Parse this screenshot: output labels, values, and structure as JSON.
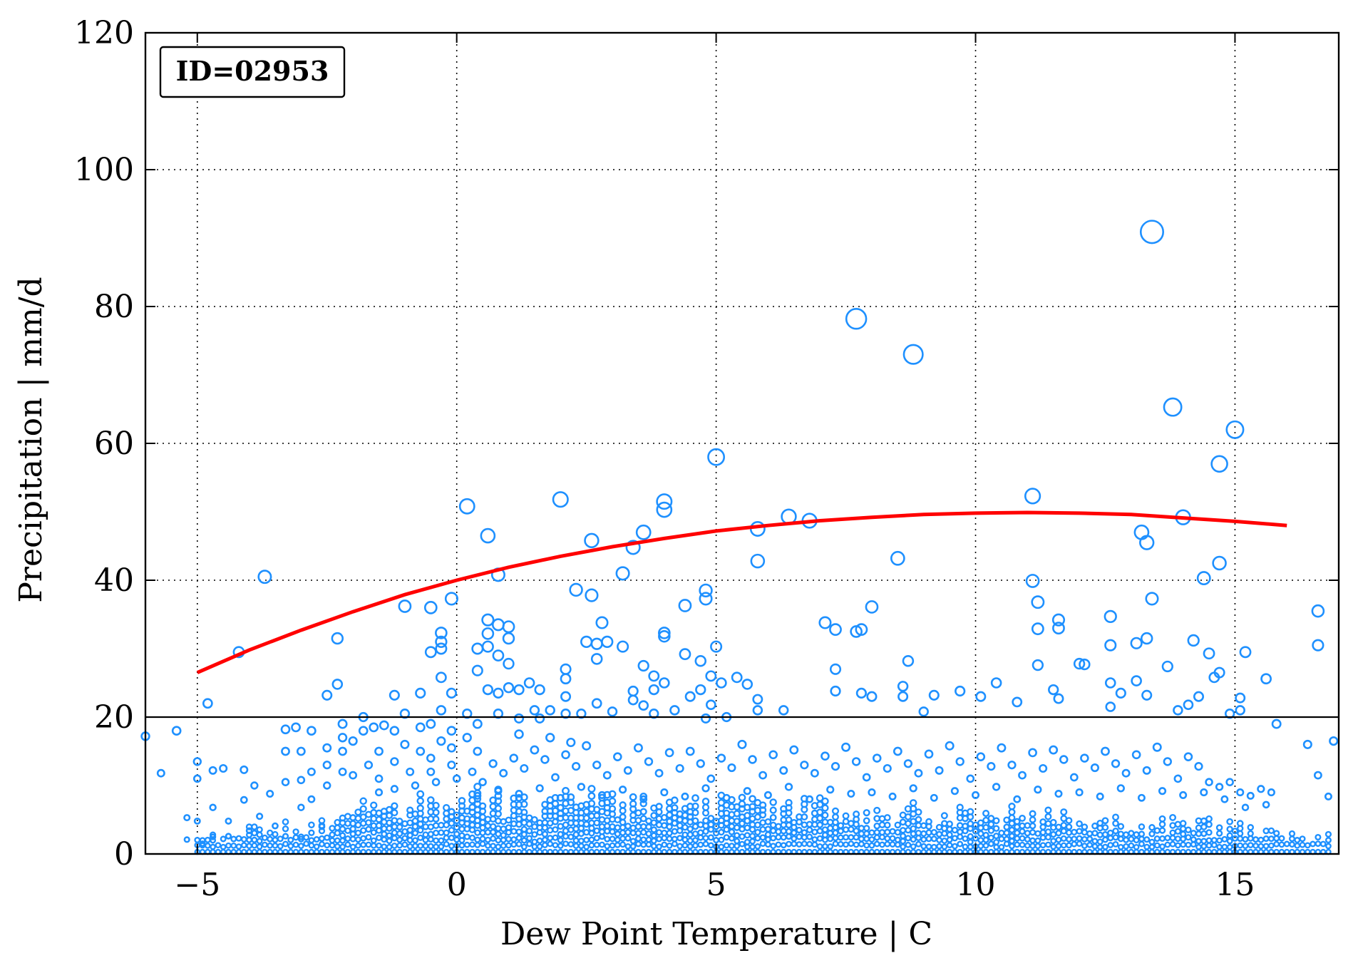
{
  "chart_data": {
    "type": "scatter",
    "title": "",
    "id_label": "ID=02953",
    "xlabel": "Dew Point Temperature | C",
    "ylabel": "Precipitation | mm/d",
    "xlim": [
      -6,
      17
    ],
    "ylim": [
      0,
      120
    ],
    "xticks": [
      -5,
      0,
      5,
      10,
      15
    ],
    "yticks": [
      0,
      20,
      40,
      60,
      80,
      100,
      120
    ],
    "xtick_labels": [
      "−5",
      "0",
      "5",
      "10",
      "15"
    ],
    "ytick_labels": [
      "0",
      "20",
      "40",
      "60",
      "80",
      "100",
      "120"
    ],
    "grid": true,
    "threshold_line": 20,
    "colors": {
      "points": "#1e90ff",
      "fit": "#ff0000",
      "threshold": "#000000"
    },
    "marker_size_encodes": "precipitation",
    "fit_curve": {
      "x": [
        -5,
        -4,
        -3,
        -2,
        -1,
        0,
        1,
        2,
        3,
        4,
        5,
        6,
        7,
        8,
        9,
        10,
        11,
        12,
        13,
        14,
        15,
        16
      ],
      "y": [
        26.5,
        29.8,
        32.7,
        35.4,
        37.9,
        40.0,
        41.9,
        43.5,
        44.9,
        46.1,
        47.2,
        48.0,
        48.7,
        49.2,
        49.6,
        49.8,
        49.9,
        49.8,
        49.6,
        49.1,
        48.6,
        48.0
      ]
    },
    "points": [
      [
        -6.0,
        17.2
      ],
      [
        -5.7,
        11.8
      ],
      [
        -5.4,
        18.0
      ],
      [
        -5.2,
        5.3
      ],
      [
        -5.2,
        2.1
      ],
      [
        -5.0,
        13.5
      ],
      [
        -5.0,
        11.0
      ],
      [
        -5.0,
        4.8
      ],
      [
        -4.9,
        1.5
      ],
      [
        -4.8,
        22.0
      ],
      [
        -4.7,
        12.2
      ],
      [
        -4.7,
        6.8
      ],
      [
        -4.7,
        2.5
      ],
      [
        -4.5,
        12.5
      ],
      [
        -4.4,
        4.8
      ],
      [
        -4.4,
        2.6
      ],
      [
        -4.2,
        29.5
      ],
      [
        -4.1,
        12.3
      ],
      [
        -4.1,
        7.9
      ],
      [
        -4.0,
        3.4
      ],
      [
        -3.9,
        10.0
      ],
      [
        -3.8,
        5.5
      ],
      [
        -3.7,
        40.5
      ],
      [
        -3.6,
        8.8
      ],
      [
        -3.5,
        4.1
      ],
      [
        -3.3,
        18.2
      ],
      [
        -3.3,
        15.0
      ],
      [
        -3.3,
        10.5
      ],
      [
        -3.1,
        18.5
      ],
      [
        -3.0,
        15.0
      ],
      [
        -3.0,
        10.8
      ],
      [
        -3.0,
        6.8
      ],
      [
        -3.0,
        2.5
      ],
      [
        -2.8,
        18.0
      ],
      [
        -2.8,
        12.0
      ],
      [
        -2.8,
        8.0
      ],
      [
        -2.6,
        4.0
      ],
      [
        -2.5,
        23.2
      ],
      [
        -2.5,
        15.5
      ],
      [
        -2.5,
        13.0
      ],
      [
        -2.5,
        10.0
      ],
      [
        -2.3,
        31.5
      ],
      [
        -2.3,
        24.8
      ],
      [
        -2.2,
        19.0
      ],
      [
        -2.2,
        17.0
      ],
      [
        -2.2,
        15.0
      ],
      [
        -2.2,
        12.0
      ],
      [
        -2.0,
        16.5
      ],
      [
        -2.0,
        11.5
      ],
      [
        -1.8,
        20.0
      ],
      [
        -1.8,
        18.0
      ],
      [
        -1.7,
        13.0
      ],
      [
        -1.6,
        18.5
      ],
      [
        -1.5,
        15.0
      ],
      [
        -1.5,
        11.0
      ],
      [
        -1.4,
        18.8
      ],
      [
        -1.2,
        23.2
      ],
      [
        -1.2,
        18.0
      ],
      [
        -1.2,
        13.5
      ],
      [
        -1.0,
        36.2
      ],
      [
        -1.0,
        20.5
      ],
      [
        -1.0,
        16.0
      ],
      [
        -0.9,
        12.0
      ],
      [
        -0.7,
        23.5
      ],
      [
        -0.7,
        18.5
      ],
      [
        -0.7,
        15.0
      ],
      [
        -0.5,
        36.0
      ],
      [
        -0.5,
        29.5
      ],
      [
        -0.5,
        19.0
      ],
      [
        -0.5,
        14.0
      ],
      [
        -0.5,
        12.0
      ],
      [
        -0.3,
        32.3
      ],
      [
        -0.3,
        31.0
      ],
      [
        -0.3,
        30.0
      ],
      [
        -0.3,
        25.8
      ],
      [
        -0.3,
        21.0
      ],
      [
        -0.3,
        16.5
      ],
      [
        -0.1,
        37.3
      ],
      [
        -0.1,
        23.5
      ],
      [
        -0.1,
        18.0
      ],
      [
        -0.1,
        15.5
      ],
      [
        -0.1,
        13.0
      ],
      [
        0.2,
        50.8
      ],
      [
        0.2,
        20.5
      ],
      [
        0.2,
        17.0
      ],
      [
        0.4,
        30.0
      ],
      [
        0.4,
        26.8
      ],
      [
        0.4,
        19.0
      ],
      [
        0.4,
        15.0
      ],
      [
        0.6,
        46.5
      ],
      [
        0.6,
        34.2
      ],
      [
        0.6,
        32.2
      ],
      [
        0.6,
        30.3
      ],
      [
        0.6,
        24.0
      ],
      [
        0.8,
        40.8
      ],
      [
        0.8,
        33.5
      ],
      [
        0.8,
        29.0
      ],
      [
        0.8,
        23.5
      ],
      [
        0.8,
        20.5
      ],
      [
        1.0,
        33.2
      ],
      [
        1.0,
        31.5
      ],
      [
        1.0,
        27.8
      ],
      [
        1.0,
        24.3
      ],
      [
        1.2,
        24.0
      ],
      [
        1.2,
        19.8
      ],
      [
        1.2,
        17.5
      ],
      [
        1.4,
        25.0
      ],
      [
        1.5,
        21.0
      ],
      [
        1.6,
        24.0
      ],
      [
        1.6,
        19.8
      ],
      [
        1.8,
        21.0
      ],
      [
        1.8,
        17.0
      ],
      [
        2.0,
        51.8
      ],
      [
        2.1,
        27.0
      ],
      [
        2.1,
        25.6
      ],
      [
        2.1,
        23.0
      ],
      [
        2.1,
        20.5
      ],
      [
        2.2,
        16.3
      ],
      [
        2.3,
        38.6
      ],
      [
        2.4,
        20.5
      ],
      [
        2.5,
        31.0
      ],
      [
        2.6,
        45.8
      ],
      [
        2.6,
        37.8
      ],
      [
        2.7,
        30.7
      ],
      [
        2.7,
        28.5
      ],
      [
        2.7,
        22.0
      ],
      [
        2.8,
        33.8
      ],
      [
        2.9,
        31.0
      ],
      [
        3.0,
        20.8
      ],
      [
        3.2,
        41.0
      ],
      [
        3.2,
        30.3
      ],
      [
        3.4,
        44.8
      ],
      [
        3.4,
        23.8
      ],
      [
        3.4,
        22.5
      ],
      [
        3.6,
        47.0
      ],
      [
        3.6,
        27.5
      ],
      [
        3.6,
        21.7
      ],
      [
        3.8,
        26.0
      ],
      [
        3.8,
        24.0
      ],
      [
        3.8,
        20.5
      ],
      [
        4.0,
        51.5
      ],
      [
        4.0,
        50.3
      ],
      [
        4.0,
        32.3
      ],
      [
        4.0,
        31.8
      ],
      [
        4.0,
        25.0
      ],
      [
        4.2,
        21.0
      ],
      [
        4.4,
        36.3
      ],
      [
        4.4,
        29.2
      ],
      [
        4.5,
        23.0
      ],
      [
        4.7,
        28.2
      ],
      [
        4.7,
        24.0
      ],
      [
        4.8,
        19.8
      ],
      [
        4.8,
        38.5
      ],
      [
        4.8,
        37.3
      ],
      [
        4.9,
        26.0
      ],
      [
        4.9,
        21.8
      ],
      [
        5.0,
        58.0
      ],
      [
        5.0,
        30.3
      ],
      [
        5.1,
        25.0
      ],
      [
        5.2,
        20.0
      ],
      [
        5.4,
        25.8
      ],
      [
        5.6,
        24.8
      ],
      [
        5.8,
        47.5
      ],
      [
        5.8,
        42.8
      ],
      [
        5.8,
        22.6
      ],
      [
        5.8,
        21.0
      ],
      [
        6.3,
        21.0
      ],
      [
        6.4,
        49.3
      ],
      [
        6.8,
        48.7
      ],
      [
        7.1,
        33.8
      ],
      [
        7.3,
        32.8
      ],
      [
        7.3,
        27.0
      ],
      [
        7.3,
        23.8
      ],
      [
        7.7,
        78.2
      ],
      [
        7.7,
        32.5
      ],
      [
        7.8,
        32.8
      ],
      [
        7.8,
        23.5
      ],
      [
        8.0,
        36.1
      ],
      [
        8.0,
        23.0
      ],
      [
        8.5,
        43.2
      ],
      [
        8.6,
        24.5
      ],
      [
        8.6,
        23.0
      ],
      [
        8.7,
        28.2
      ],
      [
        8.8,
        73.0
      ],
      [
        9.0,
        20.8
      ],
      [
        9.2,
        23.2
      ],
      [
        9.7,
        23.8
      ],
      [
        10.1,
        23.0
      ],
      [
        10.4,
        25.0
      ],
      [
        10.8,
        22.2
      ],
      [
        11.1,
        52.3
      ],
      [
        11.1,
        39.9
      ],
      [
        11.2,
        36.8
      ],
      [
        11.2,
        32.9
      ],
      [
        11.2,
        27.6
      ],
      [
        11.5,
        24.0
      ],
      [
        11.6,
        22.7
      ],
      [
        11.6,
        34.2
      ],
      [
        11.6,
        33.0
      ],
      [
        12.0,
        27.8
      ],
      [
        12.1,
        27.7
      ],
      [
        12.6,
        34.7
      ],
      [
        12.6,
        30.5
      ],
      [
        12.6,
        25.0
      ],
      [
        12.6,
        21.5
      ],
      [
        12.8,
        23.5
      ],
      [
        13.1,
        30.8
      ],
      [
        13.1,
        25.3
      ],
      [
        13.2,
        47.0
      ],
      [
        13.3,
        45.5
      ],
      [
        13.3,
        31.5
      ],
      [
        13.3,
        23.2
      ],
      [
        13.4,
        90.9
      ],
      [
        13.4,
        37.3
      ],
      [
        13.7,
        27.4
      ],
      [
        13.8,
        65.3
      ],
      [
        13.9,
        21.0
      ],
      [
        14.0,
        49.2
      ],
      [
        14.1,
        21.8
      ],
      [
        14.2,
        31.2
      ],
      [
        14.3,
        23.0
      ],
      [
        14.4,
        40.3
      ],
      [
        14.5,
        29.3
      ],
      [
        14.6,
        25.8
      ],
      [
        14.7,
        57.0
      ],
      [
        14.7,
        42.5
      ],
      [
        14.7,
        26.5
      ],
      [
        14.9,
        20.5
      ],
      [
        15.0,
        62.0
      ],
      [
        15.1,
        22.8
      ],
      [
        15.1,
        21.0
      ],
      [
        15.2,
        29.5
      ],
      [
        15.6,
        25.6
      ],
      [
        15.8,
        19.0
      ],
      [
        16.4,
        16.0
      ],
      [
        16.6,
        30.5
      ],
      [
        16.6,
        35.5
      ],
      [
        16.6,
        11.5
      ],
      [
        16.8,
        8.4
      ],
      [
        16.9,
        16.5
      ],
      [
        0.3,
        12.0
      ],
      [
        0.5,
        10.5
      ],
      [
        0.7,
        13.2
      ],
      [
        0.9,
        11.8
      ],
      [
        1.1,
        14.0
      ],
      [
        1.3,
        12.5
      ],
      [
        1.5,
        15.2
      ],
      [
        1.7,
        13.8
      ],
      [
        1.9,
        11.2
      ],
      [
        2.1,
        14.5
      ],
      [
        2.3,
        12.8
      ],
      [
        2.5,
        15.8
      ],
      [
        2.7,
        13.0
      ],
      [
        2.9,
        11.5
      ],
      [
        3.1,
        14.2
      ],
      [
        3.3,
        12.2
      ],
      [
        3.5,
        15.5
      ],
      [
        3.7,
        13.5
      ],
      [
        3.9,
        11.8
      ],
      [
        4.1,
        14.8
      ],
      [
        4.3,
        12.5
      ],
      [
        4.5,
        15.0
      ],
      [
        4.7,
        13.2
      ],
      [
        4.9,
        11.0
      ],
      [
        5.1,
        14.0
      ],
      [
        5.3,
        12.6
      ],
      [
        5.5,
        16.0
      ],
      [
        5.7,
        13.8
      ],
      [
        5.9,
        11.5
      ],
      [
        6.1,
        14.5
      ],
      [
        6.3,
        12.2
      ],
      [
        6.5,
        15.2
      ],
      [
        6.7,
        13.0
      ],
      [
        6.9,
        11.8
      ],
      [
        7.1,
        14.3
      ],
      [
        7.3,
        12.8
      ],
      [
        7.5,
        15.6
      ],
      [
        7.7,
        13.5
      ],
      [
        7.9,
        11.2
      ],
      [
        8.1,
        14.0
      ],
      [
        8.3,
        12.5
      ],
      [
        8.5,
        15.0
      ],
      [
        8.7,
        13.2
      ],
      [
        8.9,
        11.8
      ],
      [
        9.1,
        14.6
      ],
      [
        9.3,
        12.2
      ],
      [
        9.5,
        15.8
      ],
      [
        9.7,
        13.5
      ],
      [
        9.9,
        11.0
      ],
      [
        10.1,
        14.2
      ],
      [
        10.3,
        12.8
      ],
      [
        10.5,
        15.5
      ],
      [
        10.7,
        13.0
      ],
      [
        10.9,
        11.5
      ],
      [
        11.1,
        14.8
      ],
      [
        11.3,
        12.5
      ],
      [
        11.5,
        15.2
      ],
      [
        11.7,
        13.8
      ],
      [
        11.9,
        11.2
      ],
      [
        12.1,
        14.0
      ],
      [
        12.3,
        12.6
      ],
      [
        12.5,
        15.0
      ],
      [
        12.7,
        13.2
      ],
      [
        12.9,
        11.8
      ],
      [
        13.1,
        14.5
      ],
      [
        13.3,
        12.2
      ],
      [
        13.5,
        15.6
      ],
      [
        13.7,
        13.5
      ],
      [
        13.9,
        11.0
      ],
      [
        14.1,
        14.2
      ],
      [
        14.3,
        12.8
      ],
      [
        14.5,
        10.5
      ],
      [
        14.7,
        9.8
      ],
      [
        14.9,
        10.5
      ],
      [
        15.1,
        9.0
      ],
      [
        15.3,
        8.5
      ],
      [
        15.5,
        9.5
      ],
      [
        15.7,
        9.0
      ],
      [
        -1.5,
        9.0
      ],
      [
        -1.2,
        9.5
      ],
      [
        -0.8,
        10.0
      ],
      [
        -0.4,
        10.5
      ],
      [
        0.0,
        11.0
      ],
      [
        0.4,
        8.5
      ],
      [
        0.8,
        9.2
      ],
      [
        1.2,
        8.8
      ],
      [
        1.6,
        9.6
      ],
      [
        2.0,
        8.2
      ],
      [
        2.4,
        9.8
      ],
      [
        2.8,
        8.6
      ],
      [
        3.2,
        9.4
      ],
      [
        3.6,
        8.0
      ],
      [
        4.0,
        9.0
      ],
      [
        4.4,
        8.4
      ],
      [
        4.8,
        9.6
      ],
      [
        5.2,
        8.2
      ],
      [
        5.6,
        9.2
      ],
      [
        6.0,
        8.6
      ],
      [
        6.4,
        9.8
      ],
      [
        6.8,
        8.0
      ],
      [
        7.2,
        9.4
      ],
      [
        7.6,
        8.8
      ],
      [
        8.0,
        9.0
      ],
      [
        8.4,
        8.4
      ],
      [
        8.8,
        9.6
      ],
      [
        9.2,
        8.2
      ],
      [
        9.6,
        9.2
      ],
      [
        10.0,
        8.6
      ],
      [
        10.4,
        9.8
      ],
      [
        10.8,
        8.0
      ],
      [
        11.2,
        9.4
      ],
      [
        11.6,
        8.8
      ],
      [
        12.0,
        9.0
      ],
      [
        12.4,
        8.4
      ],
      [
        12.8,
        9.6
      ],
      [
        13.2,
        8.2
      ],
      [
        13.6,
        9.2
      ],
      [
        14.0,
        8.6
      ],
      [
        14.4,
        9.0
      ],
      [
        14.8,
        8.0
      ],
      [
        15.2,
        6.8
      ],
      [
        15.6,
        7.2
      ]
    ],
    "strips": {
      "x_start": -5.0,
      "x_step": 0.1,
      "x_end": 16.8,
      "max_y_by_x": [
        [
          -5.0,
          3
        ],
        [
          -4.0,
          4
        ],
        [
          -3.0,
          5
        ],
        [
          -2.0,
          7
        ],
        [
          -1.0,
          8
        ],
        [
          0.0,
          9
        ],
        [
          2.0,
          9
        ],
        [
          4.0,
          8
        ],
        [
          6.0,
          8
        ],
        [
          8.0,
          7
        ],
        [
          10.0,
          7
        ],
        [
          12.0,
          6
        ],
        [
          14.0,
          5
        ],
        [
          15.5,
          4
        ],
        [
          16.8,
          3
        ]
      ]
    }
  }
}
